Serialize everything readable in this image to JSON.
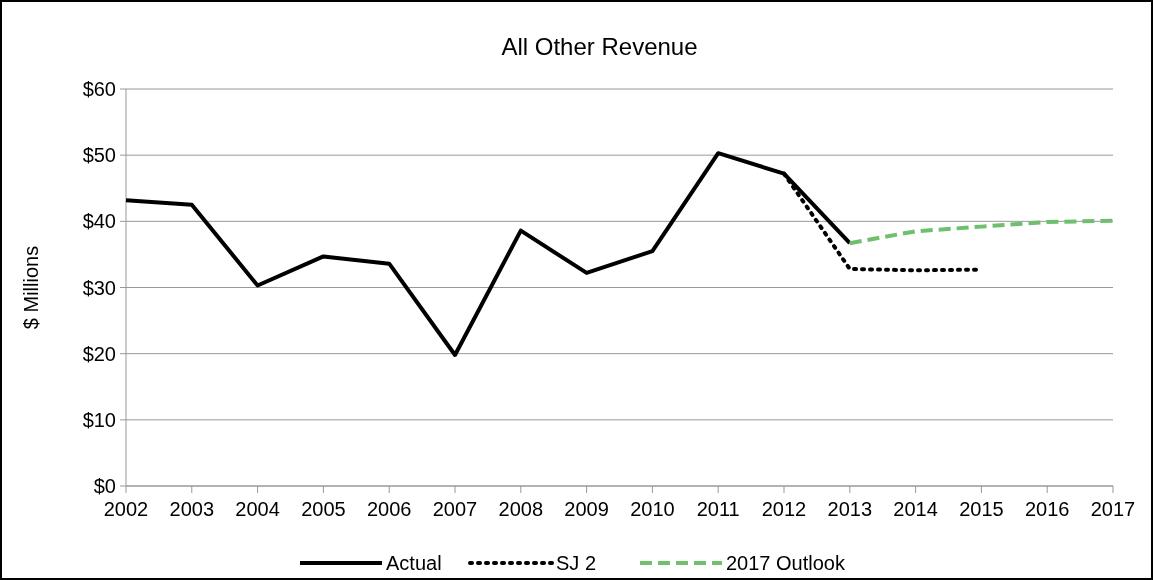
{
  "chart_data": {
    "type": "line",
    "title": "All Other Revenue",
    "ylabel": "$ Millions",
    "xlim": [
      2002,
      2017
    ],
    "xticks": [
      2002,
      2003,
      2004,
      2005,
      2006,
      2007,
      2008,
      2009,
      2010,
      2011,
      2012,
      2013,
      2014,
      2015,
      2016,
      2017
    ],
    "ylim": [
      0,
      60
    ],
    "yticks": [
      {
        "value": 0,
        "label": "$0"
      },
      {
        "value": 10,
        "label": "$10"
      },
      {
        "value": 20,
        "label": "$20"
      },
      {
        "value": 30,
        "label": "$30"
      },
      {
        "value": 40,
        "label": "$40"
      },
      {
        "value": 50,
        "label": "$50"
      },
      {
        "value": 60,
        "label": "$60"
      }
    ],
    "grid": "y",
    "legend": "bottom",
    "marker": "none",
    "series": [
      {
        "name": "Actual",
        "color": "#000000",
        "line_style": "solid",
        "x": [
          2002,
          2003,
          2004,
          2005,
          2006,
          2007,
          2008,
          2009,
          2010,
          2011,
          2012,
          2013
        ],
        "values": [
          43.2,
          42.5,
          30.3,
          34.7,
          33.6,
          19.8,
          38.6,
          32.2,
          35.5,
          50.3,
          47.2,
          36.7
        ]
      },
      {
        "name": "SJ 2",
        "color": "#000000",
        "line_style": "dotted",
        "x": [
          2012,
          2013,
          2014,
          2015
        ],
        "values": [
          47.2,
          32.8,
          32.6,
          32.7
        ]
      },
      {
        "name": "2017 Outlook",
        "color": "#6fbf6f",
        "line_style": "dashed",
        "x": [
          2013,
          2014,
          2015,
          2016,
          2017
        ],
        "values": [
          36.7,
          38.5,
          39.2,
          39.9,
          40.1
        ]
      }
    ]
  }
}
